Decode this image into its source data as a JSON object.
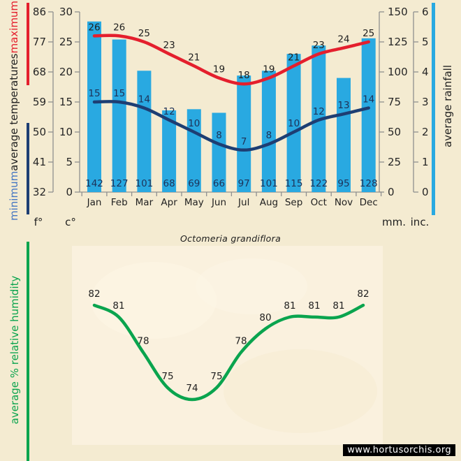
{
  "title": {
    "species": "Octomeria grandiflora"
  },
  "watermark": {
    "text": "www.hortusorchis.org"
  },
  "colors": {
    "background": "#f4ebd1",
    "humidity_plot_background": "#faf1de",
    "rain_bar_blue": "#29a9e1",
    "max_temp_red": "#e41f2d",
    "min_temp_navy": "#1d3e73",
    "humidity_green": "#0aa44e",
    "axis_gray": "#8f8f8f",
    "minimum_label_blue": "#4576c2",
    "rain_value_navy": "#1d3258",
    "watermark_bg": "#000000",
    "watermark_text": "#ffffff"
  },
  "temperature_axis": {
    "label_min": "minimum",
    "label_mid": "average temperatures",
    "label_max": "maximum",
    "unit_f": "f°",
    "unit_c": "c°"
  },
  "rainfall_axis": {
    "label": "average rainfall",
    "unit_mm": "mm.",
    "unit_inc": "inc."
  },
  "humidity_axis_label": "average % relative humidity",
  "chart_data": [
    {
      "type": "bar",
      "categories": [
        "Jan",
        "Feb",
        "Mar",
        "Apr",
        "May",
        "Jun",
        "Jul",
        "Aug",
        "Sep",
        "Oct",
        "Nov",
        "Dec"
      ],
      "series": [
        {
          "name": "maximum average temperature",
          "type": "line",
          "unit": "°C",
          "color": "#e41f2d",
          "values": [
            26,
            26,
            25,
            23,
            21,
            19,
            18,
            19,
            21,
            23,
            24,
            25
          ]
        },
        {
          "name": "minimum average temperature",
          "type": "line",
          "unit": "°C",
          "color": "#1d3e73",
          "values": [
            15,
            15,
            14,
            12,
            10,
            8,
            7,
            8,
            10,
            12,
            13,
            14
          ]
        },
        {
          "name": "average rainfall",
          "type": "bar",
          "unit": "mm",
          "color": "#29a9e1",
          "values": [
            142,
            127,
            101,
            68,
            69,
            66,
            97,
            101,
            115,
            122,
            95,
            128
          ]
        }
      ],
      "axes": {
        "fahrenheit_ticks": [
          86,
          77,
          68,
          59,
          50,
          41,
          32
        ],
        "celsius_ticks": [
          30,
          25,
          20,
          15,
          10,
          5,
          0
        ],
        "celsius_range": [
          0,
          30
        ],
        "mm_ticks": [
          150,
          125,
          100,
          75,
          50,
          25,
          0
        ],
        "mm_range": [
          0,
          150
        ],
        "inch_ticks": [
          6,
          5,
          4,
          3,
          2,
          1,
          0
        ]
      },
      "grid": false,
      "legend_position": "rotated side captions"
    },
    {
      "type": "line",
      "categories": [
        "Jan",
        "Feb",
        "Mar",
        "Apr",
        "May",
        "Jun",
        "Jul",
        "Aug",
        "Sep",
        "Oct",
        "Nov",
        "Dec"
      ],
      "series": [
        {
          "name": "average % relative humidity",
          "color": "#0aa44e",
          "values": [
            82,
            81,
            78,
            75,
            74,
            75,
            78,
            80,
            81,
            81,
            81,
            82
          ]
        }
      ],
      "ylim": [
        72,
        84
      ],
      "grid": false
    }
  ]
}
